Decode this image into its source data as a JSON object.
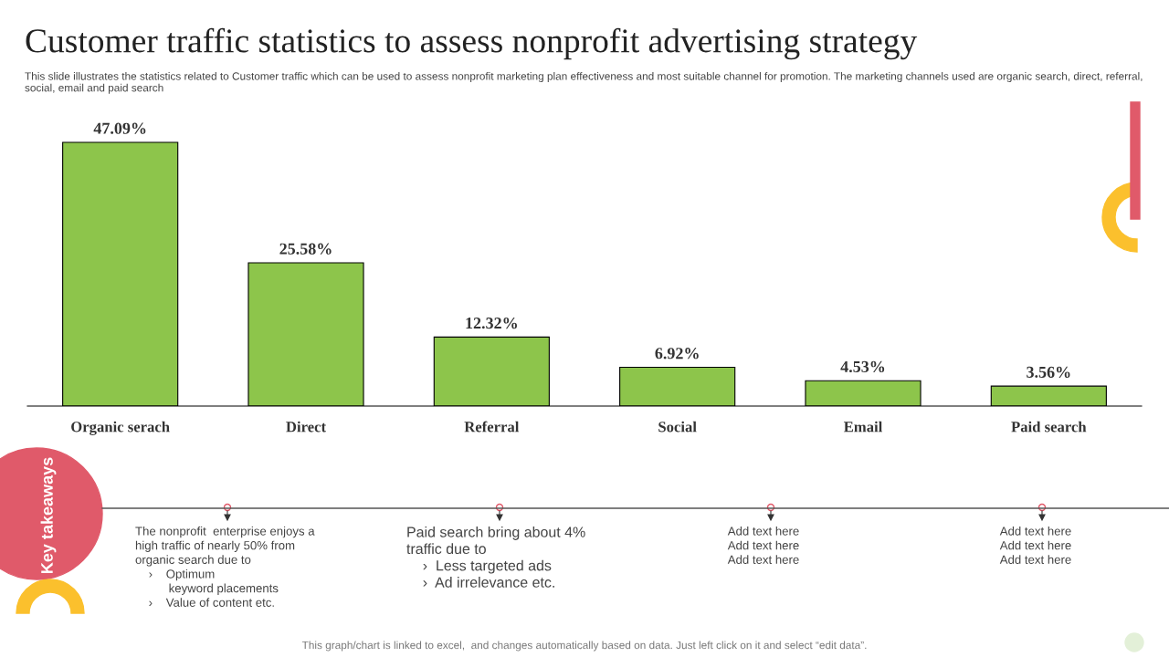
{
  "chart_data": {
    "type": "bar",
    "title": "Customer traffic statistics to assess nonprofit advertising strategy",
    "subtitle": "This slide illustrates the statistics related to Customer traffic which can be used to assess nonprofit marketing plan effectiveness and most suitable channel for promotion. The marketing channels used are organic search, direct, referral, social, email and paid search",
    "categories": [
      "Organic serach",
      "Direct",
      "Referral",
      "Social",
      "Email",
      "Paid search"
    ],
    "values": [
      47.09,
      25.58,
      12.32,
      6.92,
      4.53,
      3.56
    ],
    "value_labels": [
      "47.09%",
      "25.58%",
      "12.32%",
      "6.92%",
      "4.53%",
      "3.56%"
    ],
    "color": "#8dc54b",
    "annotations": [
      "Key takeaways",
      "The nonprofit  enterprise enjoys a\nhigh traffic of nearly 50% from\norganic search due to\n    ›    Optimum\n          keyword placements\n    ›    Value of content etc.",
      "Paid search bring about 4%\ntraffic due to\n    ›  Less targeted ads\n    ›  Ad irrelevance etc.",
      "Add text here\nAdd text here\nAdd text here",
      "Add text here\nAdd text here\nAdd text here",
      "This graph/chart is linked to excel,  and changes automatically based on data. Just left click on it and select “edit data”."
    ]
  }
}
